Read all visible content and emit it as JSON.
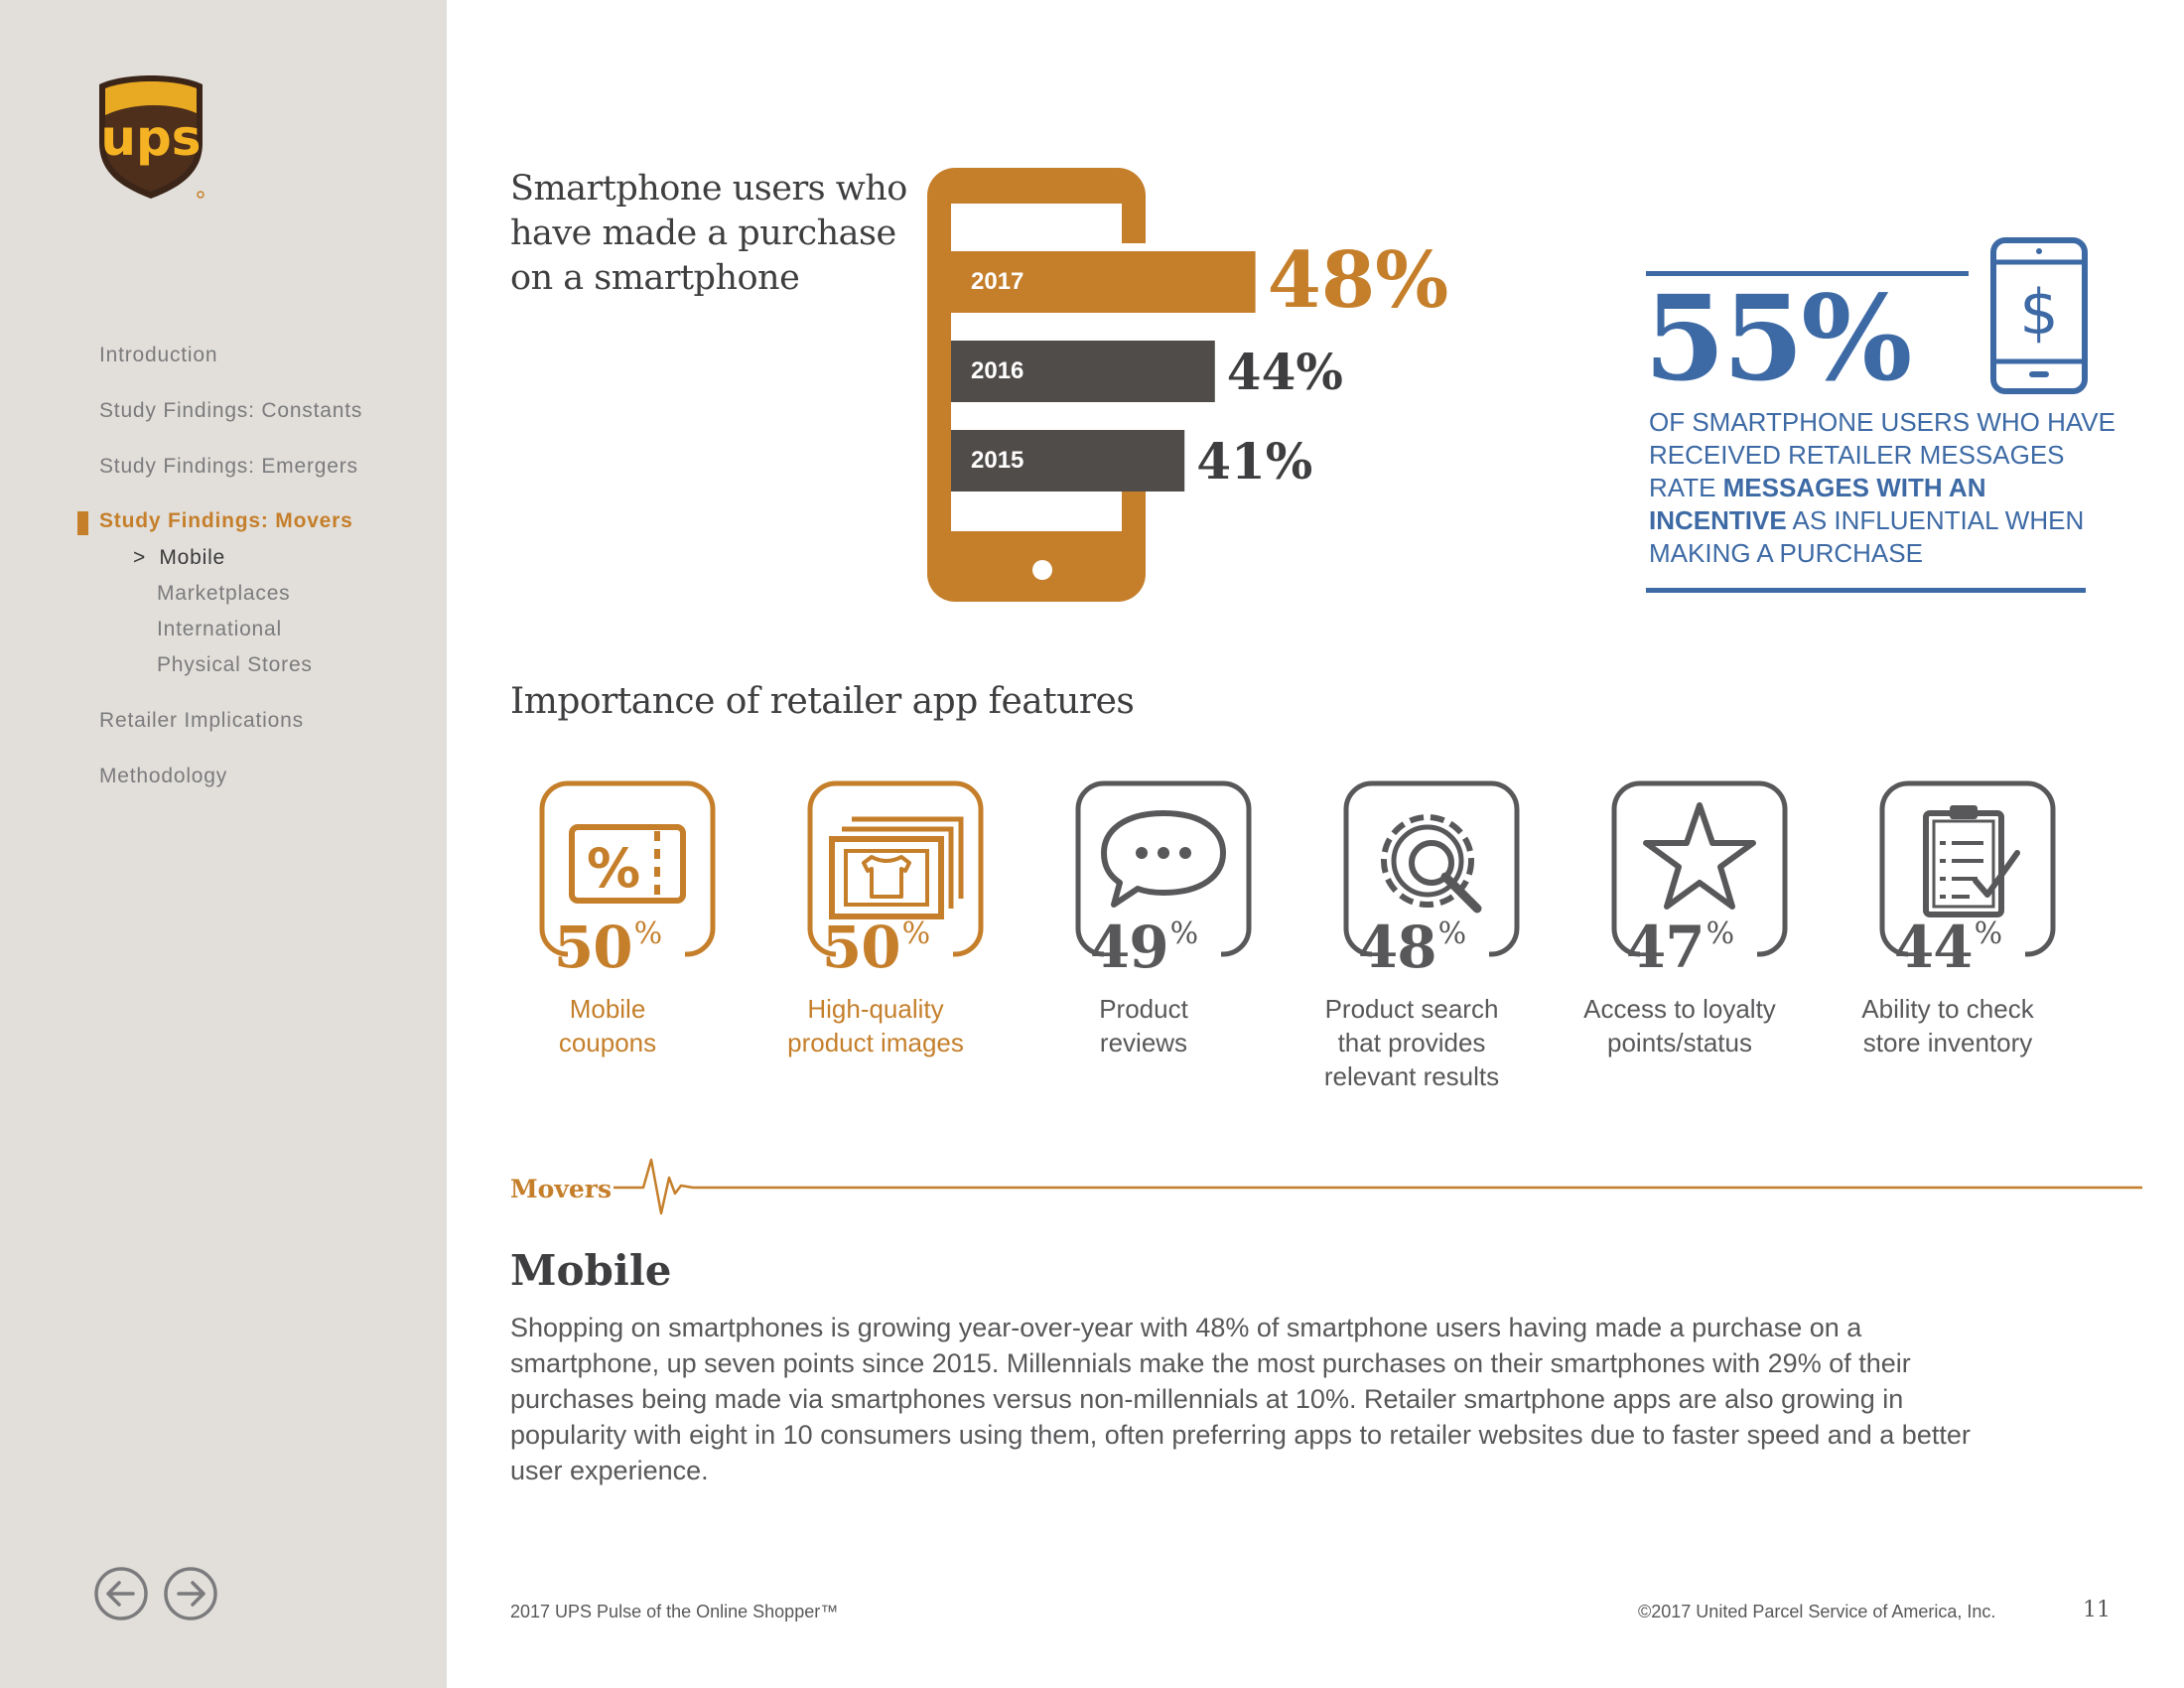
{
  "brand": {
    "logo_text": "ups",
    "colors": {
      "orange": "#c57f2b",
      "dark": "#504c4a",
      "blue": "#3d6aa5",
      "sidebar": "#e2dfda"
    }
  },
  "sidebar": {
    "items": [
      {
        "label": "Introduction"
      },
      {
        "label": "Study Findings: Constants"
      },
      {
        "label": "Study Findings: Emergers"
      },
      {
        "label": "Study Findings: Movers"
      },
      {
        "label": "Retailer Implications"
      },
      {
        "label": "Methodology"
      }
    ],
    "sub_items": [
      {
        "label": "Mobile",
        "prefix": ">"
      },
      {
        "label": "Marketplaces"
      },
      {
        "label": "International"
      },
      {
        "label": "Physical Stores"
      }
    ],
    "prev_icon": "arrow-left-circle-icon",
    "next_icon": "arrow-right-circle-icon"
  },
  "chart_data": {
    "type": "bar",
    "orientation": "horizontal",
    "title": "Smartphone users who have made a purchase on a smartphone",
    "categories": [
      "2017",
      "2016",
      "2015"
    ],
    "values": [
      48,
      44,
      41
    ],
    "value_labels": [
      "48%",
      "44%",
      "41%"
    ],
    "unit": "%",
    "highlight": "2017",
    "xlim": [
      0,
      50
    ],
    "grid": false
  },
  "callout": {
    "value": "55%",
    "text_1": "OF SMARTPHONE USERS WHO HAVE RECEIVED RETAILER MESSAGES RATE ",
    "text_bold": "MESSAGES WITH AN INCENTIVE",
    "text_2": " AS INFLUENTIAL WHEN MAKING A PURCHASE",
    "icon": "smartphone-dollar-icon"
  },
  "features": {
    "title": "Importance of retailer app features",
    "items": [
      {
        "value": "50",
        "unit": "%",
        "label_1": "Mobile",
        "label_2": "coupons",
        "label_3": "",
        "icon": "coupon-icon",
        "highlight": true
      },
      {
        "value": "50",
        "unit": "%",
        "label_1": "High-quality",
        "label_2": "product images",
        "label_3": "",
        "icon": "product-image-icon",
        "highlight": true
      },
      {
        "value": "49",
        "unit": "%",
        "label_1": "Product",
        "label_2": "reviews",
        "label_3": "",
        "icon": "speech-bubble-icon",
        "highlight": false
      },
      {
        "value": "48",
        "unit": "%",
        "label_1": "Product search",
        "label_2": "that provides",
        "label_3": "relevant results",
        "icon": "gear-search-icon",
        "highlight": false
      },
      {
        "value": "47",
        "unit": "%",
        "label_1": "Access to loyalty",
        "label_2": "points/status",
        "label_3": "",
        "icon": "star-icon",
        "highlight": false
      },
      {
        "value": "44",
        "unit": "%",
        "label_1": "Ability to check",
        "label_2": "store inventory",
        "label_3": "",
        "icon": "clipboard-check-icon",
        "highlight": false
      }
    ]
  },
  "section": {
    "tag": "Movers",
    "title": "Mobile",
    "body": "Shopping on smartphones is growing year-over-year with 48% of smartphone users having made a purchase on a smartphone, up seven points since 2015. Millennials make the most purchases on their smartphones with 29% of their purchases being made via smartphones versus non-millennials at 10%.  Retailer smartphone apps are also growing in popularity with eight in 10 consumers using them, often preferring apps to retailer websites due to faster speed and a better user experience."
  },
  "footer": {
    "left": "2017 UPS Pulse of the Online Shopper™",
    "right": "©2017 United Parcel Service of America, Inc.",
    "page": "11"
  }
}
